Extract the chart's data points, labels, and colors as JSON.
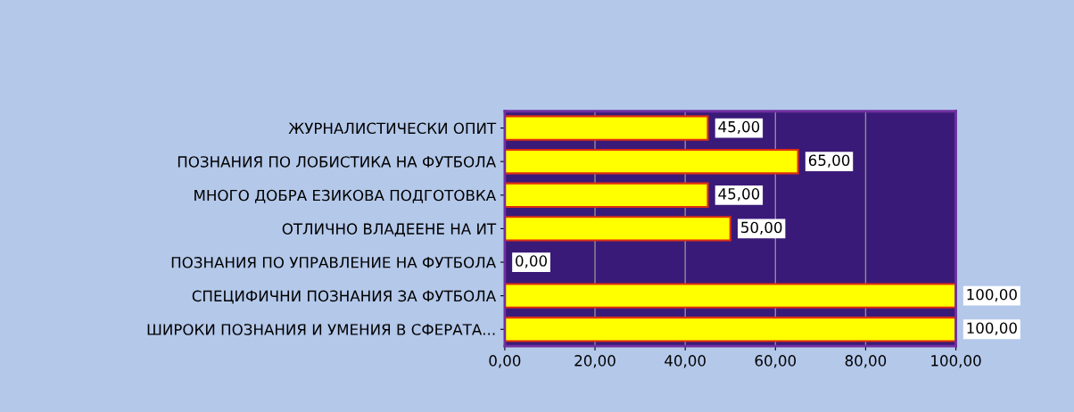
{
  "chart_data": {
    "type": "bar",
    "orientation": "horizontal",
    "categories": [
      "ЖУРНАЛИСТИЧЕСКИ ОПИТ",
      "ПОЗНАНИЯ ПО ЛОБИСТИКА НА ФУТБОЛА",
      "МНОГО ДОБРА ЕЗИКОВА ПОДГОТОВКА",
      "ОТЛИЧНО ВЛАДЕЕНЕ НА ИТ",
      "ПОЗНАНИЯ ПО УПРАВЛЕНИЕ НА ФУТБОЛА",
      "СПЕЦИФИЧНИ ПОЗНАНИЯ ЗА ФУТБОЛА",
      "ШИРОКИ ПОЗНАНИЯ И УМЕНИЯ В СФЕРАТА..."
    ],
    "values": [
      45,
      65,
      45,
      50,
      0,
      100,
      100
    ],
    "value_labels": [
      "45,00",
      "65,00",
      "45,00",
      "50,00",
      "0,00",
      "100,00",
      "100,00"
    ],
    "color": "#ffff00",
    "xlim": [
      0,
      100
    ],
    "xticks": [
      {
        "value": 0,
        "label": "0,00"
      },
      {
        "value": 20,
        "label": "20,00"
      },
      {
        "value": 40,
        "label": "40,00"
      },
      {
        "value": 60,
        "label": "60,00"
      },
      {
        "value": 80,
        "label": "80,00"
      },
      {
        "value": 100,
        "label": "100,00"
      }
    ],
    "grid": "x"
  }
}
